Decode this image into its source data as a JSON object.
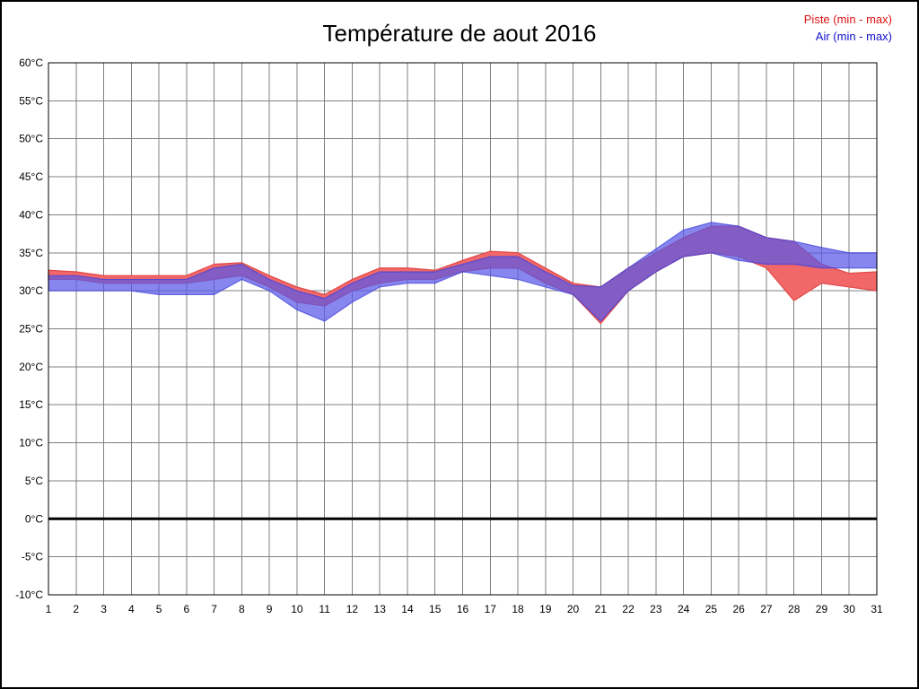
{
  "title": "Température de aout 2016",
  "legend": {
    "entries": [
      {
        "label": "Piste (min - max)",
        "color": "#dd1111"
      },
      {
        "label": "Air (min - max)",
        "color": "#1111cc"
      }
    ]
  },
  "chart_data": {
    "type": "area",
    "title": "Température de aout 2016",
    "xlabel": "",
    "ylabel": "",
    "x": [
      1,
      2,
      3,
      4,
      5,
      6,
      7,
      8,
      9,
      10,
      11,
      12,
      13,
      14,
      15,
      16,
      17,
      18,
      19,
      20,
      21,
      22,
      23,
      24,
      25,
      26,
      27,
      28,
      29,
      30,
      31
    ],
    "x_tick_labels": [
      "1",
      "2",
      "3",
      "4",
      "5",
      "6",
      "7",
      "8",
      "9",
      "10",
      "11",
      "12",
      "13",
      "14",
      "15",
      "16",
      "17",
      "18",
      "19",
      "20",
      "21",
      "22",
      "23",
      "24",
      "25",
      "26",
      "27",
      "28",
      "29",
      "30",
      "31"
    ],
    "y_ticks": [
      60,
      55,
      50,
      45,
      40,
      35,
      30,
      25,
      20,
      15,
      10,
      5,
      0,
      -5,
      -10
    ],
    "y_tick_suffix": "°C",
    "ylim": [
      -10,
      60
    ],
    "grid": true,
    "zero_line": true,
    "legend_position": "top-right",
    "series": [
      {
        "name": "Piste (min - max)",
        "fill": "#f26868",
        "stroke": "#e04848",
        "opacity": 1,
        "min": [
          31.5,
          31.5,
          31,
          31,
          31,
          31,
          31.5,
          32,
          30.5,
          28.5,
          28,
          30,
          31,
          31.5,
          31.5,
          32.5,
          33,
          33,
          31,
          29.5,
          25.7,
          30,
          32.5,
          34.5,
          35,
          34.5,
          33,
          28.7,
          31,
          30.5,
          30
        ],
        "max": [
          32.7,
          32.5,
          32,
          32,
          32,
          32,
          33.5,
          33.7,
          32,
          30.5,
          29.5,
          31.5,
          33,
          33,
          32.7,
          34,
          35.2,
          35,
          33,
          31,
          30.5,
          33,
          35,
          37,
          38.5,
          38.5,
          37,
          36.5,
          33.5,
          32.3,
          32.5
        ]
      },
      {
        "name": "Air (min - max)",
        "fill": "#5858e8",
        "stroke": "#4040dd",
        "opacity": 0.72,
        "min": [
          30,
          30,
          30,
          30,
          29.5,
          29.5,
          29.5,
          31.5,
          30,
          27.5,
          26,
          28.5,
          30.5,
          31,
          31,
          32.5,
          32,
          31.5,
          30.5,
          29.5,
          26,
          30,
          32.5,
          34.5,
          35,
          34,
          33.5,
          33.5,
          33,
          33,
          33
        ],
        "max": [
          32,
          32,
          31.5,
          31.5,
          31.5,
          31.5,
          33,
          33.5,
          31.5,
          30,
          29,
          31,
          32.5,
          32.5,
          32.5,
          33.5,
          34.5,
          34.5,
          32.5,
          30.7,
          30.5,
          33,
          35.5,
          38,
          39,
          38.5,
          37,
          36.5,
          35.7,
          35,
          35
        ]
      }
    ]
  }
}
